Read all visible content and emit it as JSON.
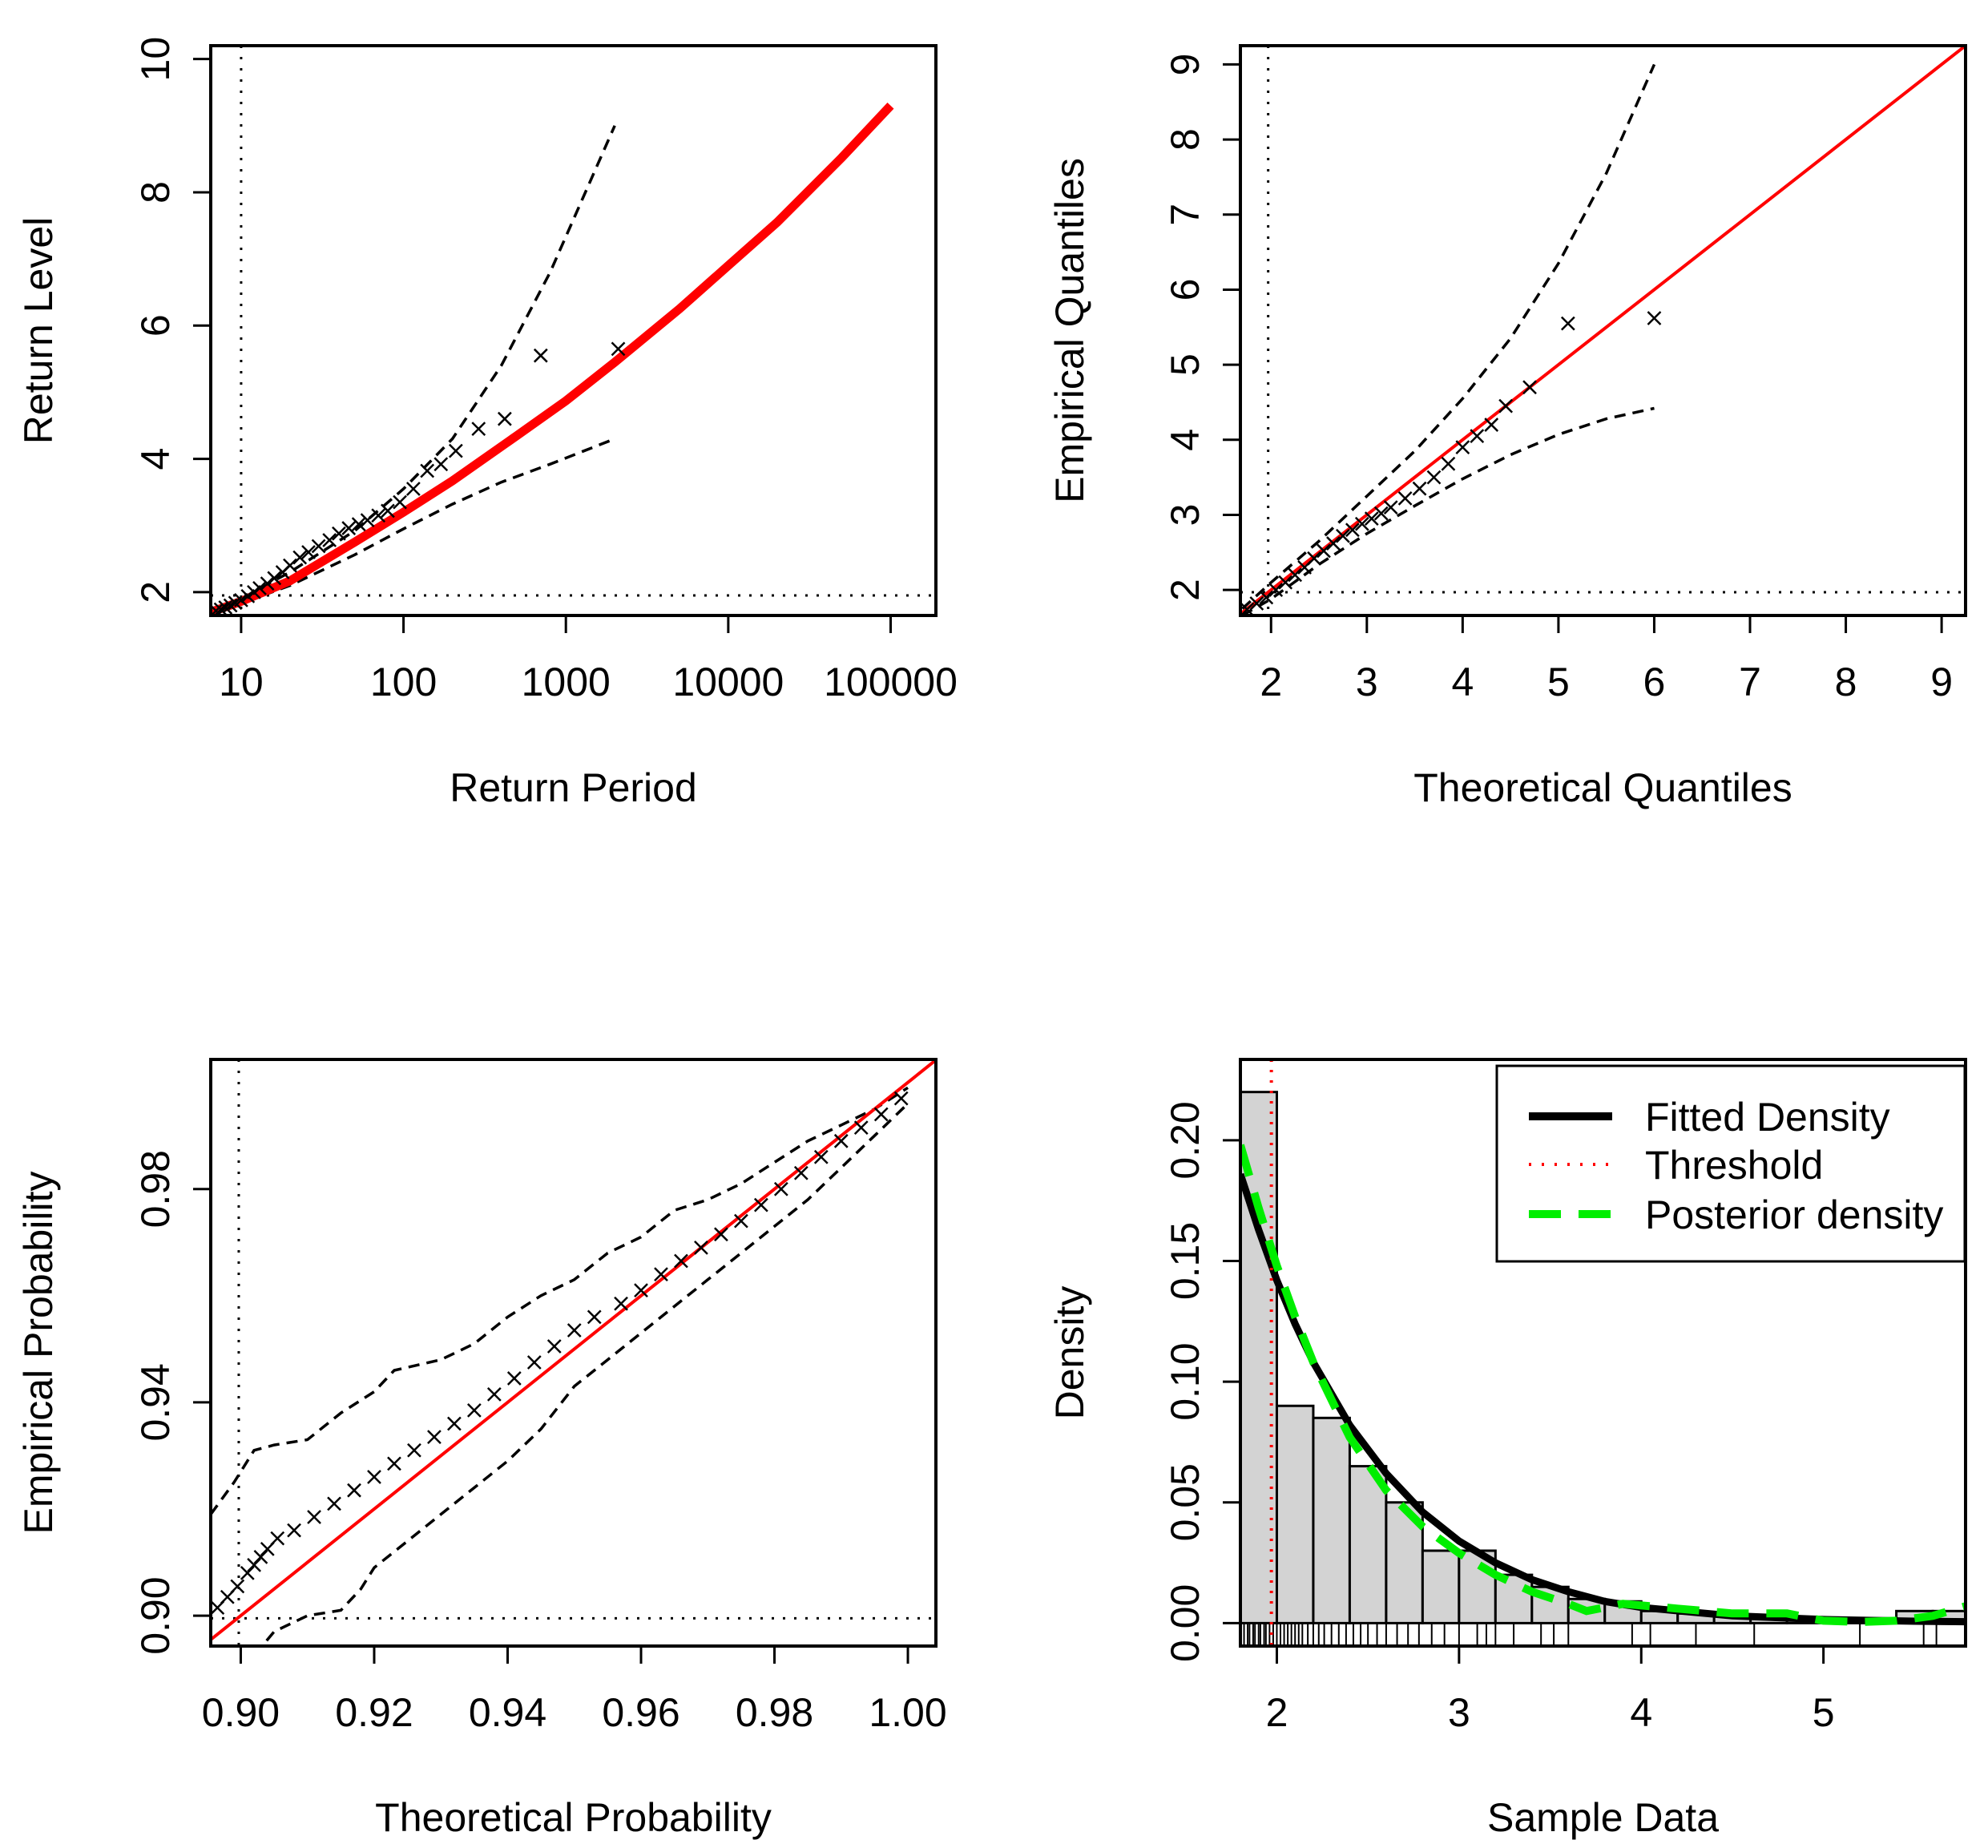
{
  "chart_data": [
    {
      "type": "scatter",
      "title": "",
      "xlabel": "Return Period",
      "ylabel": "Return Level",
      "xscale": "log",
      "xlim": [
        6.5,
        190000
      ],
      "ylim": [
        1.65,
        10.2
      ],
      "xticks": [
        10,
        100,
        1000,
        10000,
        100000
      ],
      "xtick_labels": [
        "10",
        "100",
        "1000",
        "10000",
        "100000"
      ],
      "yticks": [
        2,
        4,
        6,
        8,
        10
      ],
      "ytick_labels": [
        "2",
        "4",
        "6",
        "8",
        "10"
      ],
      "threshold_x": 10,
      "threshold_y": 1.95,
      "marker": "x",
      "fitted_curve": {
        "x": [
          6.5,
          10,
          20,
          50,
          100,
          200,
          500,
          1000,
          2000,
          5000,
          10000,
          20000,
          50000,
          100000
        ],
        "y": [
          1.7,
          1.86,
          2.17,
          2.75,
          3.2,
          3.67,
          4.35,
          4.87,
          5.45,
          6.25,
          6.9,
          7.55,
          8.52,
          9.3
        ]
      },
      "ci_upper": {
        "x": [
          6.5,
          10,
          20,
          50,
          100,
          200,
          400,
          800,
          2000
        ],
        "y": [
          1.72,
          1.9,
          2.3,
          2.92,
          3.55,
          4.3,
          5.4,
          6.8,
          9.0
        ]
      },
      "ci_lower": {
        "x": [
          6.5,
          10,
          20,
          50,
          100,
          200,
          400,
          800,
          2000
        ],
        "y": [
          1.68,
          1.83,
          2.1,
          2.56,
          2.95,
          3.32,
          3.65,
          3.92,
          4.3
        ]
      },
      "points": {
        "x": [
          7,
          7.5,
          8,
          8.6,
          9.2,
          10,
          11,
          12,
          13,
          14.5,
          16,
          18,
          20,
          23,
          26,
          30,
          35,
          40,
          46,
          53,
          60,
          70,
          80,
          95,
          115,
          140,
          170,
          210,
          290,
          420,
          700,
          2100
        ],
        "y": [
          1.72,
          1.74,
          1.77,
          1.8,
          1.84,
          1.88,
          1.94,
          2.0,
          2.06,
          2.13,
          2.21,
          2.3,
          2.4,
          2.52,
          2.6,
          2.69,
          2.78,
          2.88,
          2.96,
          3.02,
          3.08,
          3.15,
          3.22,
          3.35,
          3.55,
          3.82,
          3.92,
          4.12,
          4.45,
          4.6,
          5.55,
          5.65
        ]
      }
    },
    {
      "type": "scatter",
      "title": "",
      "xlabel": "Theoretical Quantiles",
      "ylabel": "Empirical Quantiles",
      "xlim": [
        1.68,
        9.25
      ],
      "ylim": [
        1.66,
        9.25
      ],
      "xticks": [
        2,
        3,
        4,
        5,
        6,
        7,
        8,
        9
      ],
      "xtick_labels": [
        "2",
        "3",
        "4",
        "5",
        "6",
        "7",
        "8",
        "9"
      ],
      "yticks": [
        2,
        3,
        4,
        5,
        6,
        7,
        8,
        9
      ],
      "ytick_labels": [
        "2",
        "3",
        "4",
        "5",
        "6",
        "7",
        "8",
        "9"
      ],
      "threshold_x": 1.97,
      "threshold_y": 1.97,
      "marker": "x",
      "reference_line": {
        "x": [
          1.68,
          9.25
        ],
        "y": [
          1.68,
          9.25
        ]
      },
      "ci_upper": {
        "x": [
          1.7,
          2.0,
          2.5,
          3.0,
          3.5,
          4.0,
          4.5,
          5.0,
          5.5,
          6.0
        ],
        "y": [
          1.75,
          2.1,
          2.65,
          3.25,
          3.85,
          4.55,
          5.35,
          6.35,
          7.55,
          9.0
        ]
      },
      "ci_lower": {
        "x": [
          1.7,
          2.0,
          2.5,
          3.0,
          3.5,
          4.0,
          4.5,
          5.0,
          5.5,
          6.0
        ],
        "y": [
          1.66,
          1.88,
          2.34,
          2.75,
          3.12,
          3.48,
          3.8,
          4.07,
          4.28,
          4.42
        ]
      },
      "points": {
        "x": [
          1.75,
          1.85,
          1.95,
          2.05,
          2.15,
          2.25,
          2.35,
          2.45,
          2.55,
          2.65,
          2.75,
          2.85,
          2.95,
          3.05,
          3.15,
          3.25,
          3.4,
          3.55,
          3.7,
          3.85,
          4.0,
          4.15,
          4.3,
          4.45,
          4.7,
          5.1,
          6.0
        ],
        "y": [
          1.74,
          1.82,
          1.9,
          2.0,
          2.1,
          2.2,
          2.3,
          2.42,
          2.52,
          2.62,
          2.72,
          2.8,
          2.88,
          2.95,
          3.02,
          3.1,
          3.22,
          3.35,
          3.5,
          3.68,
          3.9,
          4.05,
          4.2,
          4.45,
          4.7,
          5.55,
          5.62
        ]
      }
    },
    {
      "type": "scatter",
      "title": "",
      "xlabel": "Theoretical Probability",
      "ylabel": "Empirical Probability",
      "xlim": [
        0.8955,
        1.0042
      ],
      "ylim": [
        0.8943,
        1.0043
      ],
      "xticks": [
        0.9,
        0.92,
        0.94,
        0.96,
        0.98,
        1.0
      ],
      "xtick_labels": [
        "0.90",
        "0.92",
        "0.94",
        "0.96",
        "0.98",
        "1.00"
      ],
      "yticks": [
        0.9,
        0.94,
        0.98
      ],
      "ytick_labels": [
        "0.90",
        "0.94",
        "0.98"
      ],
      "threshold_x": 0.8997,
      "threshold_y": 0.8995,
      "marker": "x",
      "reference_line": {
        "x": [
          0.8955,
          1.0042
        ],
        "y": [
          0.8955,
          1.0042
        ]
      },
      "ci_upper": {
        "x": [
          0.8955,
          0.899,
          0.9,
          0.902,
          0.905,
          0.91,
          0.915,
          0.92,
          0.923,
          0.93,
          0.935,
          0.94,
          0.945,
          0.95,
          0.955,
          0.96,
          0.965,
          0.97,
          0.975,
          0.98,
          0.985,
          0.99,
          0.995,
          1.0
        ],
        "y": [
          0.919,
          0.925,
          0.927,
          0.931,
          0.932,
          0.933,
          0.938,
          0.942,
          0.946,
          0.948,
          0.951,
          0.956,
          0.96,
          0.963,
          0.968,
          0.971,
          0.976,
          0.978,
          0.981,
          0.985,
          0.989,
          0.992,
          0.995,
          0.999
        ]
      },
      "ci_lower": {
        "x": [
          0.8955,
          0.9,
          0.903,
          0.905,
          0.91,
          0.915,
          0.918,
          0.92,
          0.925,
          0.93,
          0.935,
          0.94,
          0.945,
          0.95,
          0.955,
          0.96,
          0.965,
          0.97,
          0.975,
          0.98,
          0.985,
          0.99,
          0.995,
          1.0
        ],
        "y": [
          0.887,
          0.893,
          0.894,
          0.897,
          0.9,
          0.901,
          0.905,
          0.909,
          0.914,
          0.919,
          0.924,
          0.929,
          0.935,
          0.943,
          0.948,
          0.953,
          0.958,
          0.963,
          0.968,
          0.973,
          0.978,
          0.984,
          0.99,
          0.996
        ]
      },
      "points": {
        "x": [
          0.8965,
          0.898,
          0.8995,
          0.901,
          0.902,
          0.903,
          0.904,
          0.9055,
          0.908,
          0.911,
          0.914,
          0.917,
          0.92,
          0.923,
          0.926,
          0.929,
          0.932,
          0.935,
          0.938,
          0.941,
          0.944,
          0.947,
          0.95,
          0.953,
          0.957,
          0.96,
          0.963,
          0.966,
          0.969,
          0.972,
          0.975,
          0.978,
          0.981,
          0.984,
          0.987,
          0.99,
          0.993,
          0.996,
          0.999
        ],
        "y": [
          0.9015,
          0.9035,
          0.9055,
          0.908,
          0.9095,
          0.911,
          0.9125,
          0.9145,
          0.916,
          0.9185,
          0.921,
          0.9235,
          0.926,
          0.9285,
          0.931,
          0.9335,
          0.936,
          0.9385,
          0.9415,
          0.9445,
          0.9475,
          0.9505,
          0.9535,
          0.956,
          0.9585,
          0.961,
          0.964,
          0.9665,
          0.969,
          0.9715,
          0.974,
          0.977,
          0.98,
          0.983,
          0.986,
          0.989,
          0.9915,
          0.994,
          0.997
        ]
      }
    },
    {
      "type": "histogram",
      "title": "",
      "xlabel": "Sample Data",
      "ylabel": "Density",
      "xlim": [
        1.8,
        5.78
      ],
      "ylim": [
        -0.0095,
        0.2335
      ],
      "xticks": [
        2,
        3,
        4,
        5
      ],
      "xtick_labels": [
        "2",
        "3",
        "4",
        "5"
      ],
      "yticks": [
        0.0,
        0.05,
        0.1,
        0.15,
        0.2
      ],
      "ytick_labels": [
        "0.00",
        "0.05",
        "0.10",
        "0.15",
        "0.20"
      ],
      "bars": {
        "breaks": [
          1.8,
          2.0,
          2.2,
          2.4,
          2.6,
          2.8,
          3.0,
          3.2,
          3.4,
          3.6,
          3.8,
          4.0,
          4.2,
          4.4,
          4.6,
          4.8,
          5.0,
          5.2,
          5.4,
          5.6,
          5.8
        ],
        "density": [
          0.22,
          0.09,
          0.085,
          0.065,
          0.05,
          0.03,
          0.03,
          0.02,
          0.015,
          0.01,
          0.009,
          0.005,
          0.004,
          0.003,
          0.002,
          0.002,
          0.002,
          0.002,
          0.005,
          0.005
        ]
      },
      "fitted_density": {
        "x": [
          1.8,
          1.9,
          2.0,
          2.1,
          2.2,
          2.4,
          2.6,
          2.8,
          3.0,
          3.2,
          3.4,
          3.6,
          3.8,
          4.0,
          4.5,
          5.0,
          5.5,
          5.78
        ],
        "y": [
          0.186,
          0.163,
          0.142,
          0.124,
          0.108,
          0.082,
          0.062,
          0.046,
          0.034,
          0.025,
          0.018,
          0.013,
          0.009,
          0.0065,
          0.003,
          0.0015,
          0.0008,
          0.0006
        ]
      },
      "posterior_density": {
        "x": [
          1.8,
          1.9,
          2.0,
          2.1,
          2.2,
          2.4,
          2.6,
          2.8,
          3.0,
          3.2,
          3.4,
          3.6,
          3.7,
          3.9,
          4.2,
          4.5,
          4.8,
          5.0,
          5.2,
          5.4,
          5.6,
          5.78
        ],
        "y": [
          0.198,
          0.172,
          0.148,
          0.127,
          0.108,
          0.077,
          0.055,
          0.04,
          0.029,
          0.02,
          0.013,
          0.008,
          0.005,
          0.008,
          0.006,
          0.004,
          0.004,
          0.001,
          0.0005,
          0.001,
          0.003,
          0.007
        ]
      },
      "threshold_x": 1.97,
      "rug": [
        1.82,
        1.84,
        1.85,
        1.87,
        1.88,
        1.9,
        1.91,
        1.93,
        1.94,
        1.96,
        1.98,
        2.0,
        2.02,
        2.04,
        2.06,
        2.08,
        2.1,
        2.12,
        2.14,
        2.17,
        2.2,
        2.23,
        2.26,
        2.3,
        2.34,
        2.38,
        2.42,
        2.46,
        2.5,
        2.55,
        2.6,
        2.66,
        2.72,
        2.78,
        2.85,
        2.92,
        3.0,
        3.1,
        3.15,
        3.2,
        3.3,
        3.45,
        3.52,
        3.6,
        3.95,
        4.05,
        4.3,
        4.62,
        5.2,
        5.55,
        5.62
      ],
      "legend": {
        "position": "top-right",
        "entries": [
          {
            "label": "Fitted Density",
            "style": "solid",
            "color": "#000000"
          },
          {
            "label": "Threshold",
            "style": "dotted",
            "color": "#ff0000"
          },
          {
            "label": "Posterior density",
            "style": "dashed",
            "color": "#00ee00"
          }
        ]
      }
    }
  ],
  "colors": {
    "axis": "#000000",
    "fit": "#ff0000",
    "ci": "#000000",
    "bar_fill": "#d3d3d3",
    "posterior": "#00ee00",
    "background": "#ffffff"
  }
}
